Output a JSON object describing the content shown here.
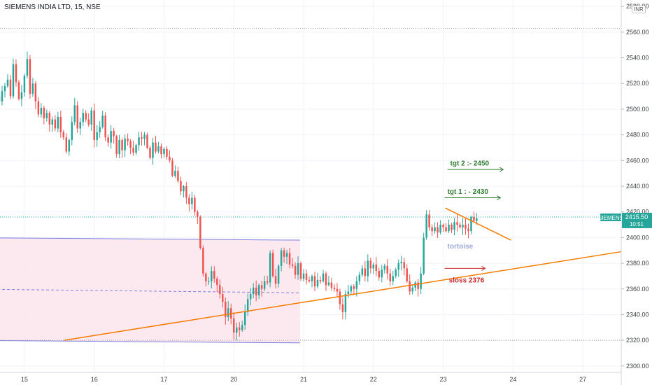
{
  "header": {
    "title": "SIEMENS INDIA LTD, 15, NSE",
    "currency": "INR"
  },
  "colors": {
    "up": "#26a69a",
    "down": "#ef5350",
    "zone_fill": "#fce4ec",
    "zone_border": "#7b7fe0",
    "trend": "#f57c00",
    "target": "#2e7d32",
    "stop": "#c62828",
    "watermark": "#9fa8da",
    "price_line": "#26a69a",
    "badge": "#26a69a"
  },
  "chart_data": {
    "type": "candlestick",
    "symbol": "SIEMENS",
    "interval": "15",
    "exchange": "NSE",
    "ylim": [
      2295,
      2585
    ],
    "y_ticks": [
      2300,
      2320,
      2340,
      2360,
      2380,
      2400,
      2420,
      2440,
      2460,
      2480,
      2500,
      2520,
      2540,
      2560,
      2580
    ],
    "x_ticks": [
      {
        "label": "15",
        "x": 0.0
      },
      {
        "label": "16",
        "x": 1.0
      },
      {
        "label": "17",
        "x": 2.0
      },
      {
        "label": "20",
        "x": 3.0
      },
      {
        "label": "21",
        "x": 4.0
      },
      {
        "label": "22",
        "x": 5.0
      },
      {
        "label": "23",
        "x": 6.0
      },
      {
        "label": "24",
        "x": 7.0
      },
      {
        "label": "27",
        "x": 8.0
      }
    ],
    "xlim": [
      -0.35,
      8.55
    ],
    "bars_per_session": 25,
    "current_price": {
      "value": 2415.5,
      "label": "2415.50",
      "timer": "10:51",
      "symbol_label": "SIEMENS"
    },
    "reference_lines": [
      2563,
      2320,
      2416
    ],
    "sessions": [
      {
        "day": "15",
        "closes": [
          2515,
          2512,
          2510,
          2506,
          2514,
          2518,
          2523,
          2510,
          2535,
          2521,
          2508,
          2513,
          2526,
          2539,
          2512,
          2520,
          2506,
          2496,
          2501,
          2493,
          2497,
          2488,
          2492,
          2485,
          2494
        ]
      },
      {
        "day": "16",
        "closes": [
          2482,
          2478,
          2467,
          2476,
          2490,
          2503,
          2485,
          2490,
          2497,
          2492,
          2488,
          2499,
          2476,
          2482,
          2486,
          2495,
          2478,
          2474,
          2483,
          2479,
          2465,
          2476,
          2468,
          2477,
          2475
        ]
      },
      {
        "day": "17",
        "closes": [
          2470,
          2466,
          2472,
          2478,
          2477,
          2480,
          2470,
          2462,
          2474,
          2467,
          2471,
          2465,
          2469,
          2463,
          2460,
          2448,
          2452,
          2444,
          2436,
          2440,
          2431,
          2426,
          2431,
          2420,
          2416
        ]
      },
      {
        "day": "20",
        "closes": [
          2392,
          2372,
          2366,
          2366,
          2374,
          2368,
          2363,
          2356,
          2350,
          2338,
          2345,
          2337,
          2326,
          2330,
          2328,
          2332,
          2342,
          2352,
          2356,
          2361,
          2355,
          2363,
          2360,
          2366,
          2365
        ]
      },
      {
        "day": "21",
        "closes": [
          2388,
          2370,
          2364,
          2378,
          2390,
          2385,
          2388,
          2379,
          2378,
          2371,
          2380,
          2368,
          2372,
          2367,
          2366,
          2370,
          2362,
          2367,
          2366,
          2372,
          2363,
          2365,
          2361,
          2360,
          2358
        ]
      },
      {
        "day": "22",
        "closes": [
          2348,
          2342,
          2356,
          2358,
          2362,
          2360,
          2366,
          2371,
          2376,
          2370,
          2382,
          2376,
          2379,
          2374,
          2369,
          2375,
          2378,
          2372,
          2366,
          2370,
          2375,
          2380,
          2381,
          2376,
          2366
        ]
      },
      {
        "day": "23",
        "closes": [
          2358,
          2361,
          2365,
          2360,
          2372,
          2400,
          2418,
          2408,
          2405,
          2408,
          2404,
          2410,
          2408,
          2405,
          2410,
          2406,
          2412,
          2410,
          2408,
          2410,
          2407,
          2405,
          2416,
          2413,
          2415
        ]
      }
    ],
    "drawings": {
      "zone": {
        "x1": -0.95,
        "x2": 3.95,
        "top_y1": 2400,
        "top_y2": 2398,
        "bottom_y1": 2320,
        "bottom_y2": 2318,
        "mid_y1": 2360,
        "mid_y2": 2357
      },
      "trendline": {
        "x1": 0.57,
        "y1": 2320,
        "x2": 8.55,
        "y2": 2389
      },
      "triangle": {
        "x1": 6.03,
        "y1": 2423,
        "x2": 6.97,
        "y2": 2398
      },
      "targets": [
        {
          "label": "tgt 2 :- 2450",
          "price": 2453,
          "x1": 6.06,
          "x2": 6.86,
          "ly": 2456
        },
        {
          "label": "tgt 1 : - 2430",
          "price": 2431,
          "x1": 6.02,
          "x2": 6.82,
          "ly": 2434
        }
      ],
      "stop": {
        "label": "sloss 2376",
        "price": 2376,
        "x1": 6.02,
        "x2": 6.6,
        "ly": 2365
      },
      "watermark": {
        "label": "tortoise",
        "x": 6.06,
        "y": 2399
      }
    }
  }
}
